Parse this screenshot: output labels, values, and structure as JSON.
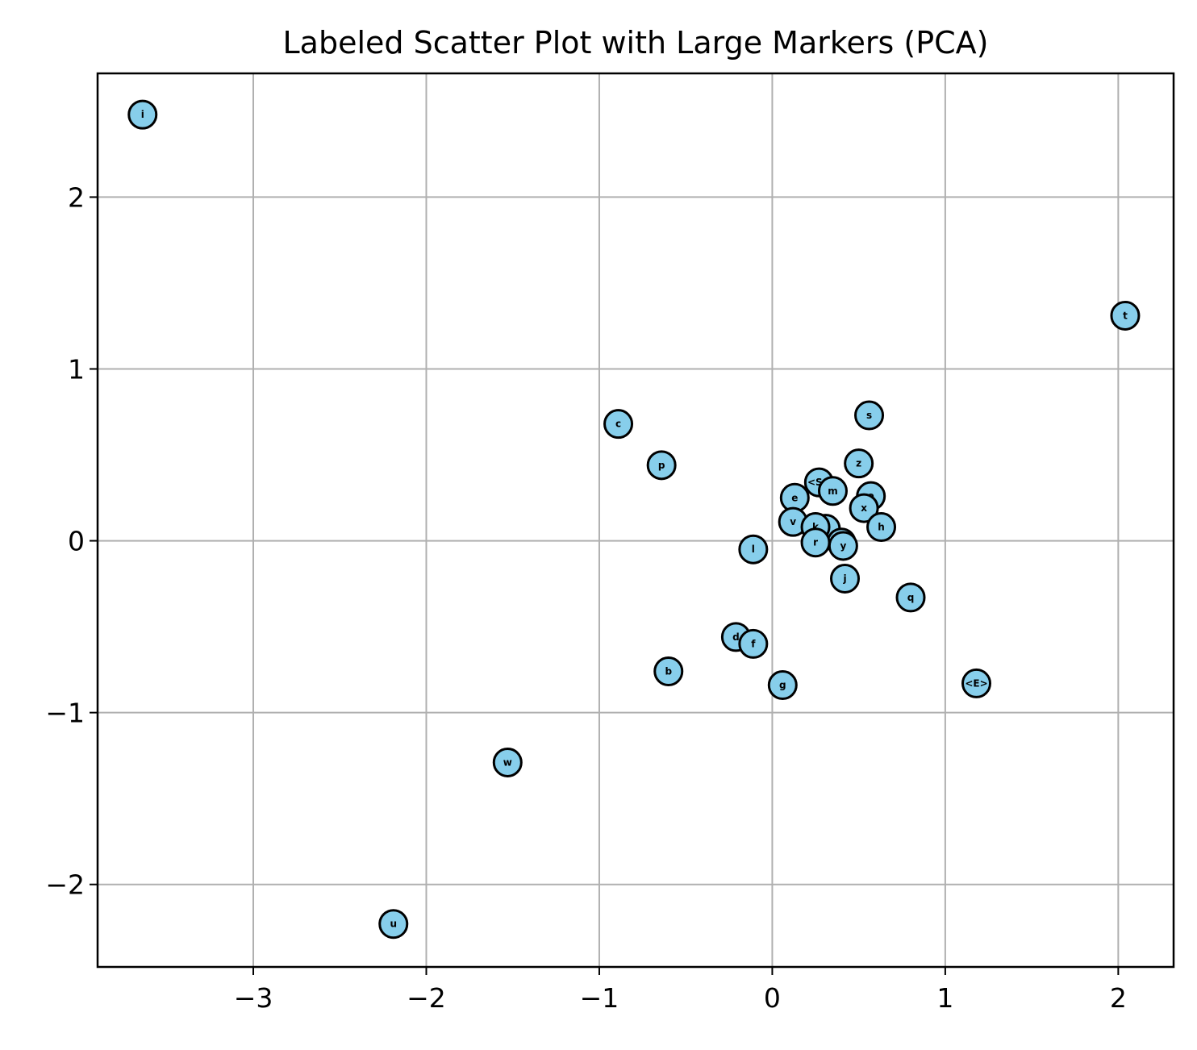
{
  "chart_data": {
    "type": "scatter",
    "title": "Labeled Scatter Plot with Large Markers (PCA)",
    "xlabel": "",
    "ylabel": "",
    "xlim": [
      -3.9,
      2.32
    ],
    "ylim": [
      -2.48,
      2.72
    ],
    "xticks": [
      -3,
      -2,
      -1,
      0,
      1,
      2
    ],
    "yticks": [
      -2,
      -1,
      0,
      1,
      2
    ],
    "xtick_labels": [
      "−3",
      "−2",
      "−1",
      "0",
      "1",
      "2"
    ],
    "ytick_labels": [
      "−2",
      "−1",
      "0",
      "1",
      "2"
    ],
    "grid": true,
    "marker_color": "#87CEEB",
    "marker_edge_color": "#000000",
    "points": [
      {
        "label": "i",
        "x": -3.64,
        "y": 2.48
      },
      {
        "label": "t",
        "x": 2.04,
        "y": 1.31
      },
      {
        "label": "c",
        "x": -0.89,
        "y": 0.68
      },
      {
        "label": "p",
        "x": -0.64,
        "y": 0.44
      },
      {
        "label": "s",
        "x": 0.56,
        "y": 0.73
      },
      {
        "label": "z",
        "x": 0.5,
        "y": 0.45
      },
      {
        "label": "<S>",
        "x": 0.27,
        "y": 0.34
      },
      {
        "label": "m",
        "x": 0.35,
        "y": 0.29
      },
      {
        "label": "o",
        "x": 0.57,
        "y": 0.26
      },
      {
        "label": "e",
        "x": 0.13,
        "y": 0.25
      },
      {
        "label": "x",
        "x": 0.53,
        "y": 0.19
      },
      {
        "label": "v",
        "x": 0.12,
        "y": 0.11
      },
      {
        "label": "h",
        "x": 0.63,
        "y": 0.08
      },
      {
        "label": "a",
        "x": 0.31,
        "y": 0.07
      },
      {
        "label": "k",
        "x": 0.25,
        "y": 0.08
      },
      {
        "label": "n",
        "x": 0.4,
        "y": -0.01
      },
      {
        "label": "r",
        "x": 0.25,
        "y": -0.01
      },
      {
        "label": "y",
        "x": 0.41,
        "y": -0.03
      },
      {
        "label": "l",
        "x": -0.11,
        "y": -0.05
      },
      {
        "label": "j",
        "x": 0.42,
        "y": -0.22
      },
      {
        "label": "q",
        "x": 0.8,
        "y": -0.33
      },
      {
        "label": "d",
        "x": -0.21,
        "y": -0.56
      },
      {
        "label": "f",
        "x": -0.11,
        "y": -0.6
      },
      {
        "label": "b",
        "x": -0.6,
        "y": -0.76
      },
      {
        "label": "g",
        "x": 0.06,
        "y": -0.84
      },
      {
        "label": "<E>",
        "x": 1.18,
        "y": -0.83
      },
      {
        "label": "w",
        "x": -1.53,
        "y": -1.29
      },
      {
        "label": "u",
        "x": -2.19,
        "y": -2.23
      }
    ]
  }
}
